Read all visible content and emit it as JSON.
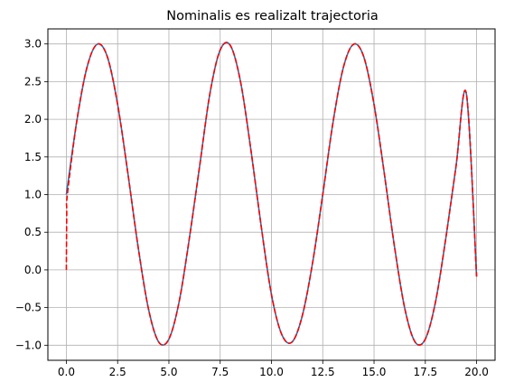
{
  "chart_data": {
    "type": "line",
    "title": "Nominalis es realizalt trajectoria",
    "xlabel": "",
    "ylabel": "",
    "xlim": [
      -0.9,
      20.9
    ],
    "ylim": [
      -1.2,
      3.2
    ],
    "xticks": [
      0.0,
      2.5,
      5.0,
      7.5,
      10.0,
      12.5,
      15.0,
      17.5,
      20.0
    ],
    "xtick_labels": [
      "0.0",
      "2.5",
      "5.0",
      "7.5",
      "10.0",
      "12.5",
      "15.0",
      "17.5",
      "20.0"
    ],
    "yticks": [
      -1.0,
      -0.5,
      0.0,
      0.5,
      1.0,
      1.5,
      2.0,
      2.5,
      3.0
    ],
    "ytick_labels": [
      "−1.0",
      "−0.5",
      "0.0",
      "0.5",
      "1.0",
      "1.5",
      "2.0",
      "2.5",
      "3.0"
    ],
    "grid": true,
    "series": [
      {
        "style": "solid",
        "color": "#1f77b4",
        "x": [
          0,
          0.5,
          1,
          1.5,
          2,
          2.5,
          3,
          3.5,
          4,
          4.5,
          5,
          5.5,
          6,
          6.5,
          7,
          7.5,
          8,
          8.5,
          9,
          9.5,
          10,
          10.5,
          11,
          11.5,
          12,
          12.5,
          13,
          13.5,
          14,
          14.5,
          15,
          15.5,
          16,
          16.5,
          17,
          17.5,
          18,
          18.5,
          19,
          19.5,
          20
        ],
        "y": [
          1.0,
          1.959,
          2.683,
          2.996,
          2.829,
          2.197,
          1.282,
          0.303,
          -0.513,
          -0.956,
          -0.918,
          -0.421,
          0.423,
          1.382,
          2.342,
          2.92,
          2.978,
          2.487,
          1.588,
          0.577,
          -0.328,
          -0.856,
          -0.958,
          -0.611,
          0.087,
          1.0,
          1.959,
          2.683,
          2.996,
          2.829,
          2.197,
          1.282,
          0.303,
          -0.513,
          -0.956,
          -0.918,
          -0.421,
          0.423,
          1.382,
          2.342,
          -0.088
        ]
      },
      {
        "style": "dashed",
        "color": "#ff0000",
        "x": [
          0,
          0.02,
          0.05,
          0.5,
          1,
          1.5,
          2,
          2.5,
          3,
          3.5,
          4,
          4.5,
          5,
          5.5,
          6,
          6.5,
          7,
          7.5,
          8,
          8.5,
          9,
          9.5,
          10,
          10.5,
          11,
          11.5,
          12,
          12.5,
          13,
          13.5,
          14,
          14.5,
          15,
          15.5,
          16,
          16.5,
          17,
          17.5,
          18,
          18.5,
          19,
          19.5,
          20
        ],
        "y": [
          0.0,
          0.75,
          1.0,
          1.959,
          2.683,
          2.996,
          2.829,
          2.197,
          1.282,
          0.303,
          -0.513,
          -0.956,
          -0.918,
          -0.421,
          0.423,
          1.382,
          2.342,
          2.92,
          2.978,
          2.487,
          1.588,
          0.577,
          -0.328,
          -0.856,
          -0.958,
          -0.611,
          0.087,
          1.0,
          1.959,
          2.683,
          2.996,
          2.829,
          2.197,
          1.282,
          0.303,
          -0.513,
          -0.956,
          -0.918,
          -0.421,
          0.423,
          1.382,
          2.342,
          -0.088
        ]
      }
    ]
  }
}
